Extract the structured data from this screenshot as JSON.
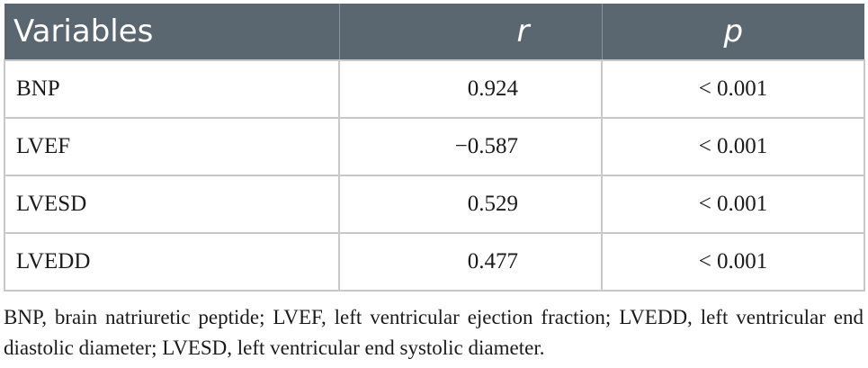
{
  "table": {
    "headers": [
      "Variables",
      "r",
      "p"
    ],
    "rows": [
      {
        "variable": "BNP",
        "r": "0.924",
        "p": "< 0.001"
      },
      {
        "variable": "LVEF",
        "r": "−0.587",
        "p": "< 0.001"
      },
      {
        "variable": "LVESD",
        "r": "0.529",
        "p": "< 0.001"
      },
      {
        "variable": "LVEDD",
        "r": "0.477",
        "p": "< 0.001"
      }
    ]
  },
  "footnote": "BNP, brain natriuretic peptide; LVEF, left ventricular ejection fraction; LVEDD, left ventricular end diastolic diameter; LVESD, left ventricular end systolic diameter.",
  "colors": {
    "header_bg": "#5b6770",
    "header_text": "#ffffff",
    "grid": "#c8c8c8"
  }
}
